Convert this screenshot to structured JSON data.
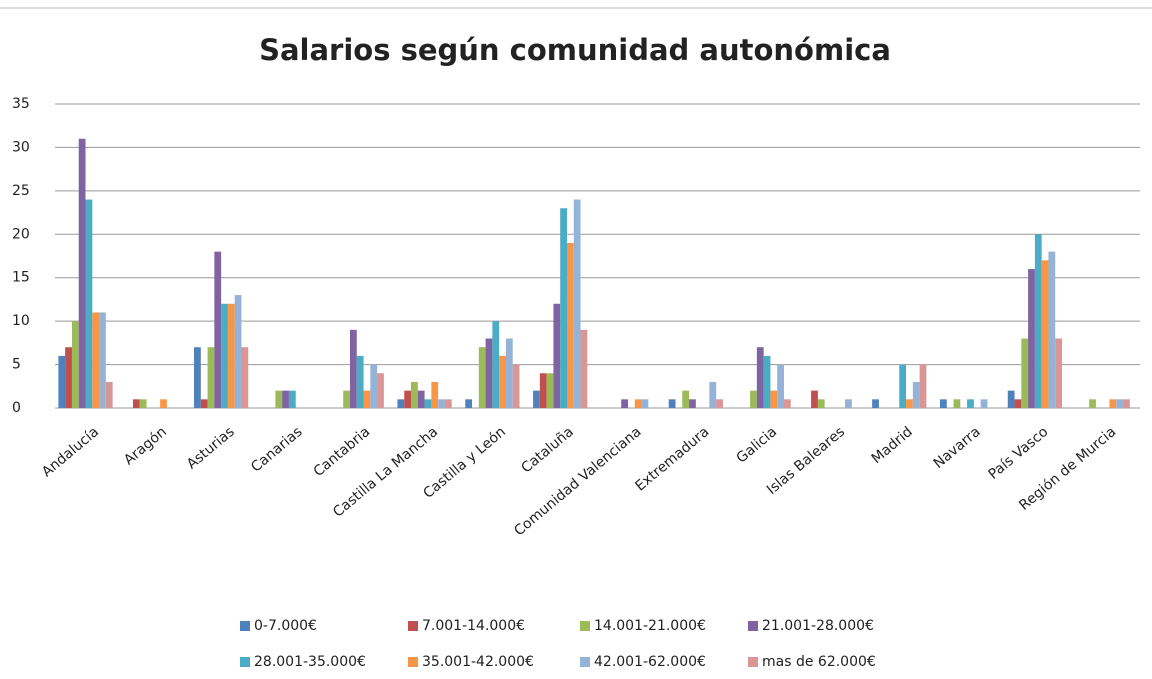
{
  "chart_data": {
    "type": "bar",
    "title": "Salarios según comunidad autonómica",
    "categories": [
      "Andalucía",
      "Aragón",
      "Asturias",
      "Canarias",
      "Cantabria",
      "Castilla La Mancha",
      "Castilla y León",
      "Cataluña",
      "Comunidad Valenciana",
      "Extremadura",
      "Galicia",
      "Islas Baleares",
      "Madrid",
      "Navarra",
      "País Vasco",
      "Región de Murcia"
    ],
    "series": [
      {
        "name": "0-7.000€",
        "color": "#4f81bd",
        "values": [
          6,
          0,
          7,
          0,
          0,
          1,
          1,
          2,
          0,
          1,
          0,
          0,
          1,
          1,
          2,
          0
        ]
      },
      {
        "name": "7.001-14.000€",
        "color": "#c0504d",
        "values": [
          7,
          1,
          1,
          0,
          0,
          2,
          0,
          4,
          0,
          0,
          0,
          2,
          0,
          0,
          1,
          0
        ]
      },
      {
        "name": "14.001-21.000€",
        "color": "#9bbb59",
        "values": [
          10,
          1,
          7,
          2,
          2,
          3,
          7,
          4,
          0,
          2,
          2,
          1,
          0,
          1,
          8,
          1
        ]
      },
      {
        "name": "21.001-28.000€",
        "color": "#8064a2",
        "values": [
          31,
          0,
          18,
          2,
          9,
          2,
          8,
          12,
          1,
          1,
          7,
          0,
          0,
          0,
          16,
          0
        ]
      },
      {
        "name": "28.001-35.000€",
        "color": "#4bacc6",
        "values": [
          24,
          0,
          12,
          2,
          6,
          1,
          10,
          23,
          0,
          0,
          6,
          0,
          5,
          1,
          20,
          0
        ]
      },
      {
        "name": "35.001-42.000€",
        "color": "#f79646",
        "values": [
          11,
          1,
          12,
          0,
          2,
          3,
          6,
          19,
          1,
          0,
          2,
          0,
          1,
          0,
          17,
          1
        ]
      },
      {
        "name": "42.001-62.000€",
        "color": "#95b3d7",
        "values": [
          11,
          0,
          13,
          0,
          5,
          1,
          8,
          24,
          1,
          3,
          5,
          1,
          3,
          1,
          18,
          1
        ]
      },
      {
        "name": "mas de 62.000€",
        "color": "#d99694",
        "values": [
          3,
          0,
          7,
          0,
          4,
          1,
          5,
          9,
          0,
          1,
          1,
          0,
          5,
          0,
          8,
          1
        ]
      }
    ],
    "ylim": [
      0,
      35
    ],
    "yticks": [
      0,
      5,
      10,
      15,
      20,
      25,
      30,
      35
    ],
    "grid": true,
    "legend": "bottom"
  }
}
